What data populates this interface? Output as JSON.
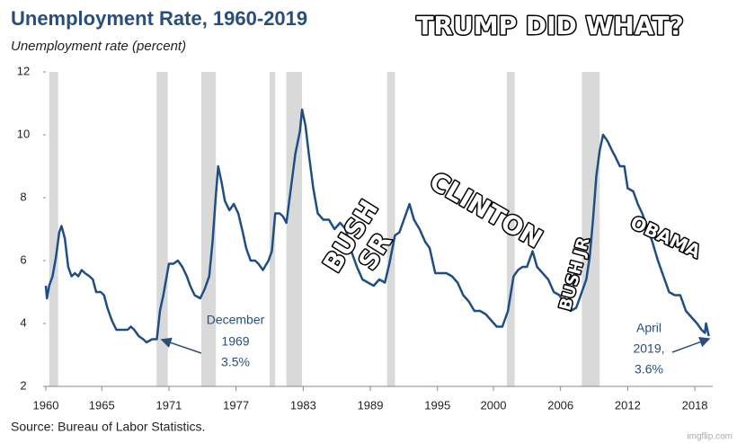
{
  "chart_data": {
    "type": "line",
    "title": "Unemployment Rate, 1960-2019",
    "subtitle": "Unemployment rate (percent)",
    "source": "Source: Bureau of Labor Statistics.",
    "xlim": [
      1960,
      2019.6
    ],
    "xticks": [
      1960,
      1965,
      1971,
      1977,
      1983,
      1989,
      1995,
      2000,
      2006,
      2012,
      2018
    ],
    "ylim": [
      2,
      12
    ],
    "yticks": [
      2,
      4,
      6,
      8,
      10,
      12
    ],
    "recessions": [
      [
        1960.3,
        1961.1
      ],
      [
        1969.9,
        1970.9
      ],
      [
        1973.9,
        1975.2
      ],
      [
        1980.0,
        1980.5
      ],
      [
        1981.5,
        1982.9
      ],
      [
        1990.5,
        1991.2
      ],
      [
        2001.2,
        2001.9
      ],
      [
        2007.9,
        2009.5
      ]
    ],
    "recession_color": "#d9d9d9",
    "series": [
      {
        "name": "Unemployment rate",
        "color": "#1f4e85",
        "x": [
          1960.0,
          1960.1,
          1960.3,
          1960.6,
          1960.9,
          1961.2,
          1961.4,
          1961.7,
          1962.0,
          1962.3,
          1962.6,
          1962.9,
          1963.2,
          1963.5,
          1963.9,
          1964.2,
          1964.5,
          1964.9,
          1965.2,
          1965.5,
          1965.9,
          1966.3,
          1966.7,
          1967.0,
          1967.3,
          1967.6,
          1967.9,
          1968.3,
          1968.7,
          1969.0,
          1969.5,
          1969.92,
          1970.2,
          1970.5,
          1970.8,
          1971.0,
          1971.4,
          1971.8,
          1972.2,
          1972.6,
          1972.9,
          1973.3,
          1973.8,
          1974.2,
          1974.6,
          1974.9,
          1975.2,
          1975.4,
          1975.7,
          1976.0,
          1976.4,
          1976.8,
          1977.2,
          1977.6,
          1977.9,
          1978.3,
          1978.7,
          1979.0,
          1979.4,
          1979.9,
          1980.2,
          1980.5,
          1980.9,
          1981.2,
          1981.5,
          1981.9,
          1982.3,
          1982.7,
          1982.9,
          1983.2,
          1983.5,
          1983.9,
          1984.3,
          1984.8,
          1985.3,
          1985.8,
          1986.3,
          1986.8,
          1987.3,
          1987.8,
          1988.3,
          1988.8,
          1989.3,
          1989.8,
          1990.3,
          1990.7,
          1991.2,
          1991.6,
          1992.0,
          1992.5,
          1992.9,
          1993.4,
          1993.9,
          1994.3,
          1994.8,
          1995.3,
          1995.8,
          1996.3,
          1996.8,
          1997.3,
          1997.8,
          1998.3,
          1998.8,
          1999.3,
          1999.8,
          2000.3,
          2000.8,
          2001.3,
          2001.8,
          2002.2,
          2002.6,
          2003.0,
          2003.5,
          2003.9,
          2004.4,
          2004.9,
          2005.4,
          2005.9,
          2006.4,
          2006.9,
          2007.4,
          2007.9,
          2008.3,
          2008.6,
          2008.9,
          2009.2,
          2009.5,
          2009.8,
          2010.2,
          2010.6,
          2010.9,
          2011.3,
          2011.7,
          2012.0,
          2012.5,
          2012.9,
          2013.3,
          2013.8,
          2014.2,
          2014.7,
          2015.2,
          2015.7,
          2016.2,
          2016.7,
          2017.2,
          2017.7,
          2018.2,
          2018.6,
          2018.9,
          2019.0,
          2019.25
        ],
        "values": [
          5.2,
          4.8,
          5.2,
          5.5,
          6.1,
          6.9,
          7.1,
          6.7,
          5.8,
          5.5,
          5.6,
          5.5,
          5.7,
          5.6,
          5.5,
          5.4,
          5.0,
          5.0,
          4.9,
          4.5,
          4.1,
          3.8,
          3.8,
          3.8,
          3.8,
          3.9,
          3.8,
          3.6,
          3.5,
          3.4,
          3.5,
          3.5,
          4.4,
          4.9,
          5.5,
          5.9,
          5.9,
          6.0,
          5.8,
          5.5,
          5.2,
          4.9,
          4.8,
          5.1,
          5.5,
          6.6,
          8.1,
          9.0,
          8.5,
          7.9,
          7.6,
          7.8,
          7.5,
          6.9,
          6.4,
          6.0,
          6.0,
          5.9,
          5.7,
          6.0,
          6.3,
          7.5,
          7.5,
          7.4,
          7.2,
          8.3,
          9.4,
          10.1,
          10.8,
          10.3,
          9.4,
          8.3,
          7.5,
          7.3,
          7.3,
          7.0,
          7.2,
          7.0,
          6.3,
          5.8,
          5.4,
          5.3,
          5.2,
          5.4,
          5.3,
          5.9,
          6.8,
          6.9,
          7.3,
          7.8,
          7.3,
          7.0,
          6.6,
          6.4,
          5.6,
          5.6,
          5.6,
          5.5,
          5.3,
          4.9,
          4.7,
          4.4,
          4.4,
          4.3,
          4.1,
          3.9,
          3.9,
          4.4,
          5.5,
          5.7,
          5.8,
          5.8,
          6.3,
          5.8,
          5.6,
          5.4,
          5.0,
          4.9,
          4.6,
          4.4,
          4.5,
          5.0,
          5.4,
          6.1,
          7.3,
          8.7,
          9.5,
          10.0,
          9.8,
          9.5,
          9.3,
          9.0,
          9.0,
          8.3,
          8.2,
          7.8,
          7.5,
          7.0,
          6.6,
          6.0,
          5.5,
          5.0,
          4.9,
          4.9,
          4.4,
          4.2,
          4.0,
          3.8,
          3.7,
          4.0,
          3.6
        ]
      }
    ],
    "annotations": [
      [
        "December",
        "1969",
        "3.5%"
      ],
      [
        "April",
        "2019,",
        "3.6%"
      ]
    ],
    "meme_text": {
      "top": "TRUMP DID WHAT?",
      "bush_sr": [
        "BUSH",
        "SR"
      ],
      "clinton": "CLINTON",
      "bush_jr": "BUSH JR",
      "obama": "OBAMA"
    },
    "watermark": "imgflip.com"
  }
}
